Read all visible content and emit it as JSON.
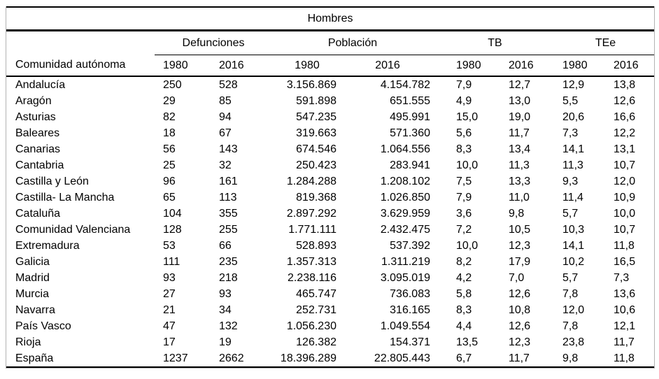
{
  "colors": {
    "text": "#000000",
    "rule": "#000000",
    "outer_border": "#b3b3b3",
    "bg": "#ffffff"
  },
  "table": {
    "title": "Hombres",
    "row_header": "Comunidad autónoma",
    "groups": [
      {
        "label": "Defunciones",
        "years": [
          "1980",
          "2016"
        ]
      },
      {
        "label": "Población",
        "years": [
          "1980",
          "2016"
        ]
      },
      {
        "label": "TB",
        "years": [
          "1980",
          "2016"
        ]
      },
      {
        "label": "TEe",
        "years": [
          "1980",
          "2016"
        ]
      }
    ],
    "rows": [
      [
        "Andalucía",
        "250",
        "528",
        "3.156.869",
        "4.154.782",
        "7,9",
        "12,7",
        "12,9",
        "13,8"
      ],
      [
        "Aragón",
        "29",
        "85",
        "591.898",
        "651.555",
        "4,9",
        "13,0",
        "5,5",
        "12,6"
      ],
      [
        "Asturias",
        "82",
        "94",
        "547.235",
        "495.991",
        "15,0",
        "19,0",
        "20,6",
        "16,6"
      ],
      [
        "Baleares",
        "18",
        "67",
        "319.663",
        "571.360",
        "5,6",
        "11,7",
        "7,3",
        "12,2"
      ],
      [
        "Canarias",
        "56",
        "143",
        "674.546",
        "1.064.556",
        "8,3",
        "13,4",
        "14,1",
        "13,1"
      ],
      [
        "Cantabria",
        "25",
        "32",
        "250.423",
        "283.941",
        "10,0",
        "11,3",
        "11,3",
        "10,7"
      ],
      [
        "Castilla y León",
        "96",
        "161",
        "1.284.288",
        "1.208.102",
        "7,5",
        "13,3",
        "9,3",
        "12,0"
      ],
      [
        "Castilla- La Mancha",
        "65",
        "113",
        "819.368",
        "1.026.850",
        "7,9",
        "11,0",
        "11,4",
        "10,9"
      ],
      [
        "Cataluña",
        "104",
        "355",
        "2.897.292",
        "3.629.959",
        "3,6",
        "9,8",
        "5,7",
        "10,0"
      ],
      [
        "Comunidad Valenciana",
        "128",
        "255",
        "1.771.111",
        "2.432.475",
        "7,2",
        "10,5",
        "10,3",
        "10,7"
      ],
      [
        "Extremadura",
        "53",
        "66",
        "528.893",
        "537.392",
        "10,0",
        "12,3",
        "14,1",
        "11,8"
      ],
      [
        "Galicia",
        "111",
        "235",
        "1.357.313",
        "1.311.219",
        "8,2",
        "17,9",
        "10,2",
        "16,5"
      ],
      [
        "Madrid",
        "93",
        "218",
        "2.238.116",
        "3.095.019",
        "4,2",
        "7,0",
        "5,7",
        "7,3"
      ],
      [
        "Murcia",
        "27",
        "93",
        "465.747",
        "736.083",
        "5,8",
        "12,6",
        "7,8",
        "13,6"
      ],
      [
        "Navarra",
        "21",
        "34",
        "252.731",
        "316.165",
        "8,3",
        "10,8",
        "12,0",
        "10,6"
      ],
      [
        "País Vasco",
        "47",
        "132",
        "1.056.230",
        "1.049.554",
        "4,4",
        "12,6",
        "7,8",
        "12,1"
      ],
      [
        "Rioja",
        "17",
        "19",
        "126.382",
        "154.371",
        "13,5",
        "12,3",
        "23,8",
        "11,7"
      ],
      [
        "España",
        "1237",
        "2662",
        "18.396.289",
        "22.805.443",
        "6,7",
        "11,7",
        "9,8",
        "11,8"
      ]
    ]
  }
}
